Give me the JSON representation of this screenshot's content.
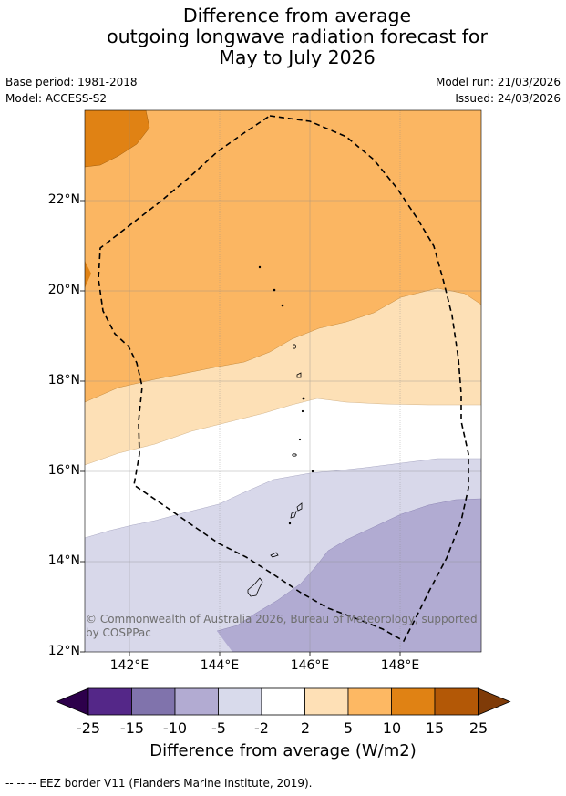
{
  "title": {
    "line1": "Difference from average",
    "line2": "outgoing longwave radiation forecast for",
    "line3": "May to July 2026"
  },
  "meta": {
    "base_period": "Base period: 1981-2018",
    "model": "Model: ACCESS-S2",
    "model_run": "Model run: 21/03/2026",
    "issued": "Issued: 24/03/2026"
  },
  "map": {
    "lat_ticks": [
      "22°N",
      "20°N",
      "18°N",
      "16°N",
      "14°N",
      "12°N"
    ],
    "lon_ticks": [
      "142°E",
      "144°E",
      "146°E",
      "148°E"
    ],
    "copyright": "© Commonwealth of Australia 2026, Bureau of Meteorology, supported by COSPPac",
    "colors": {
      "neg_5_10": "#b1abd2",
      "neg_2_5": "#d8d8ea",
      "neutral": "#ffffff",
      "pos_2_5": "#fde0b6",
      "pos_5_10": "#fbb662",
      "pos_10_15": "#e08214",
      "eez_border": "#000000"
    }
  },
  "colorbar": {
    "ticks": [
      "-25",
      "-15",
      "-10",
      "-5",
      "-2",
      "2",
      "5",
      "10",
      "15",
      "25"
    ],
    "colors": [
      "#542788",
      "#8073ac",
      "#b2abd2",
      "#d8daeb",
      "#ffffff",
      "#fee0b6",
      "#fdb863",
      "#e08214",
      "#b35806"
    ],
    "under_color": "#2d004b",
    "over_color": "#7f3b08",
    "label": "Difference from average (W/m2)"
  },
  "footnote": "--  --  -- EEZ border V11 (Flanders Marine Institute, 2019)."
}
